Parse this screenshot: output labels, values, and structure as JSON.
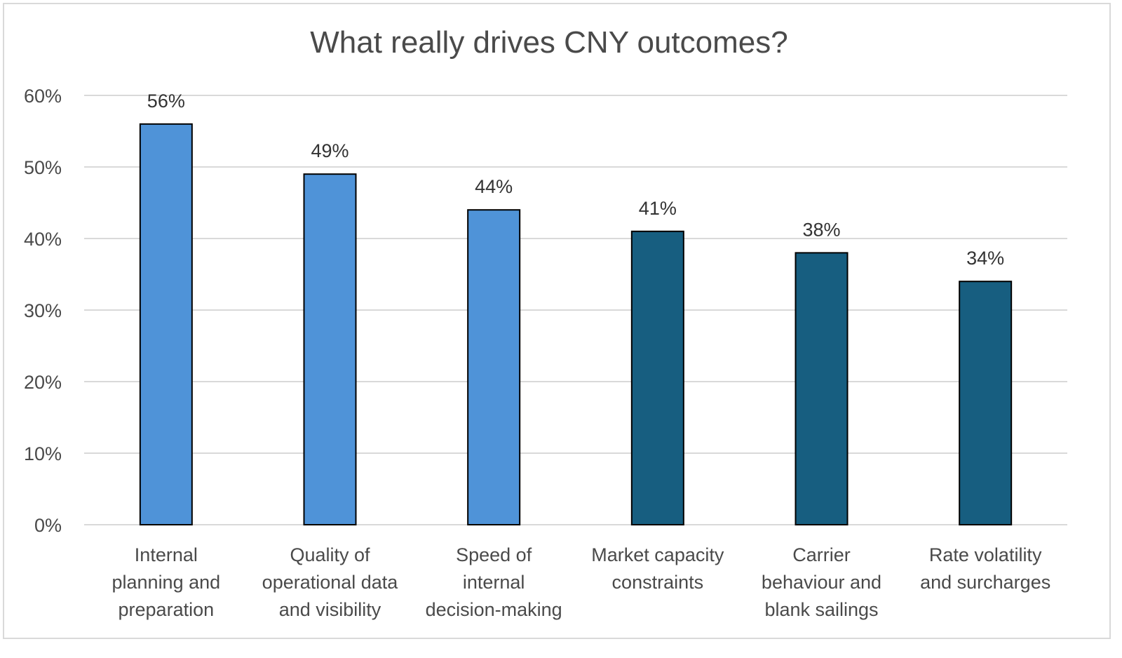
{
  "chart_data": {
    "type": "bar",
    "title": "What really drives CNY outcomes?",
    "xlabel": "",
    "ylabel": "",
    "ylim": [
      0,
      60
    ],
    "yticks": [
      "0%",
      "10%",
      "20%",
      "30%",
      "40%",
      "50%",
      "60%"
    ],
    "ytick_values": [
      0,
      10,
      20,
      30,
      40,
      50,
      60
    ],
    "grid": true,
    "categories": [
      [
        "Internal",
        "planning and",
        "preparation"
      ],
      [
        "Quality of",
        "operational data",
        "and visibility"
      ],
      [
        "Speed of",
        "internal",
        "decision-making"
      ],
      [
        "Market capacity",
        "constraints"
      ],
      [
        "Carrier",
        "behaviour and",
        "blank sailings"
      ],
      [
        "Rate volatility",
        "and surcharges"
      ]
    ],
    "values": [
      56,
      49,
      44,
      41,
      38,
      34
    ],
    "data_labels": [
      "56%",
      "49%",
      "44%",
      "41%",
      "38%",
      "34%"
    ],
    "colors": [
      "#4f93d8",
      "#4f93d8",
      "#4f93d8",
      "#175e80",
      "#175e80",
      "#175e80"
    ],
    "gridline_color": "#d9d9d9",
    "bar_border_color": "#000000"
  }
}
